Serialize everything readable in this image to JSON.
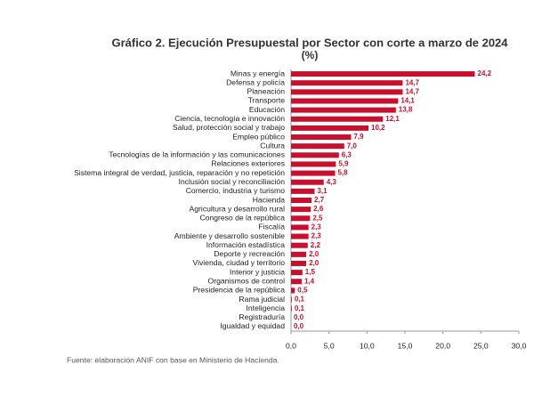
{
  "chart_data": {
    "type": "bar",
    "orientation": "horizontal",
    "title": "Gráfico 2. Ejecución Presupuestal por Sector con corte a marzo de 2024",
    "subtitle": "(%)",
    "source": "Fuente: elaboración ANIF con base en Ministerio de Hacienda.",
    "color": "#c8102e",
    "categories": [
      "Minas y energía",
      "Defensa y policía",
      "Planeación",
      "Transporte",
      "Educación",
      "Ciencia, tecnología e innovación",
      "Salud, protección social y trabajo",
      "Empleo público",
      "Cultura",
      "Tecnologías de la información y las comunicaciones",
      "Relaciones exteriores",
      "Sistema integral de verdad, justicia, reparación y no repetición",
      "Inclusión social y reconciliación",
      "Comercio, industria y turismo",
      "Hacienda",
      "Agricultura y desarrollo rural",
      "Congreso de la república",
      "Fiscalía",
      "Ambiente y desarrollo sostenible",
      "Información estadística",
      "Deporte y recreación",
      "Vivienda, ciudad y territorio",
      "Interior y justicia",
      "Organismos de control",
      "Presidencia de la república",
      "Rama judicial",
      "Inteligencia",
      "Registraduría",
      "Igualdad y equidad"
    ],
    "values": [
      24.2,
      14.7,
      14.7,
      14.1,
      13.8,
      12.1,
      10.2,
      7.9,
      7.0,
      6.3,
      5.9,
      5.8,
      4.3,
      3.1,
      2.7,
      2.6,
      2.5,
      2.3,
      2.3,
      2.2,
      2.0,
      2.0,
      1.5,
      1.4,
      0.5,
      0.1,
      0.1,
      0.0,
      0.0
    ],
    "value_labels": [
      "24,2",
      "14,7",
      "14,7",
      "14,1",
      "13,8",
      "12,1",
      "10,2",
      "7,9",
      "7,0",
      "6,3",
      "5,9",
      "5,8",
      "4,3",
      "3,1",
      "2,7",
      "2,6",
      "2,5",
      "2,3",
      "2,3",
      "2,2",
      "2,0",
      "2,0",
      "1,5",
      "1,4",
      "0,5",
      "0,1",
      "0,1",
      "0,0",
      "0,0"
    ],
    "xlim": [
      0,
      30
    ],
    "xticks": [
      {
        "value": 0,
        "label": "0,0"
      },
      {
        "value": 5,
        "label": "5,0"
      },
      {
        "value": 10,
        "label": "10,0"
      },
      {
        "value": 15,
        "label": "15,0"
      },
      {
        "value": 20,
        "label": "20,0"
      },
      {
        "value": 25,
        "label": "25,0"
      },
      {
        "value": 30,
        "label": "30,0"
      }
    ],
    "grid": false
  }
}
